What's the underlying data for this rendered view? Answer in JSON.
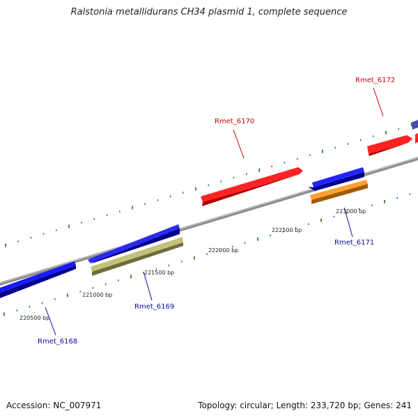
{
  "title": "Ralstonia metallidurans CH34 plasmid 1, complete sequence",
  "footer": {
    "accession": "Accession: NC_007971",
    "summary": "Topology: circular; Length: 233,720 bp; Genes: 241"
  },
  "colors": {
    "backbone": "#8c8c8c",
    "tick": "#137a13",
    "forward_label": "#cc0000",
    "reverse_label": "#0a0aa0"
  },
  "scale_labels": [
    {
      "text": "220500 bp"
    },
    {
      "text": "221000 bp"
    },
    {
      "text": "221500 bp"
    },
    {
      "text": "222000 bp"
    },
    {
      "text": "222500 bp"
    },
    {
      "text": "223000 bp"
    }
  ],
  "genes": [
    {
      "label": "Rmet_6168",
      "strand": "reverse",
      "color": "#0a0ae6"
    },
    {
      "label": "Rmet_6169",
      "strand": "reverse",
      "color": "#b8b87a"
    },
    {
      "label": "Rmet_6170",
      "strand": "forward",
      "color": "#ee1111"
    },
    {
      "label": "Rmet_6171",
      "strand": "reverse",
      "color": "#ff9a1a"
    },
    {
      "label": "Rmet_6172",
      "strand": "forward",
      "color": "#ee1111"
    }
  ]
}
